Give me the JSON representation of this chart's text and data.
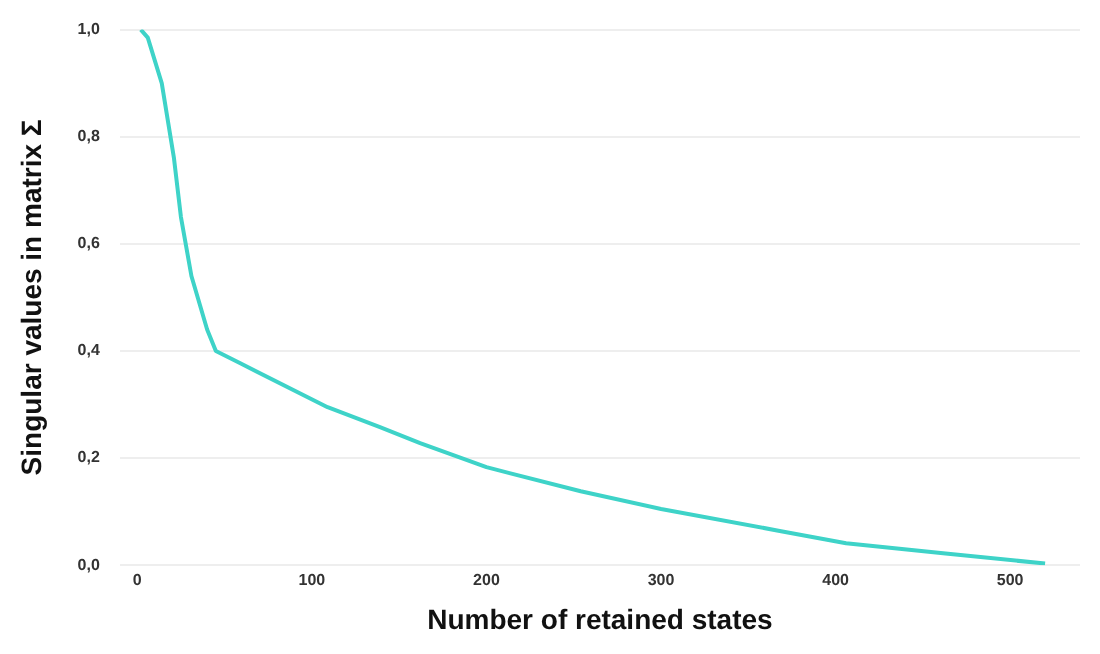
{
  "chart_data": {
    "type": "line",
    "xlabel": "Number of retained states",
    "ylabel": "Singular values in matrix Σ",
    "xlim": [
      -10,
      540
    ],
    "xticks": [
      0,
      100,
      200,
      300,
      400,
      500
    ],
    "ylim": [
      0,
      1
    ],
    "yticks": [
      {
        "value": 0,
        "label": "0,0"
      },
      {
        "value": 0.2,
        "label": "0,2"
      },
      {
        "value": 0.4,
        "label": "0,4"
      },
      {
        "value": 0.6,
        "label": "0,6"
      },
      {
        "value": 0.8,
        "label": "0,8"
      },
      {
        "value": 1,
        "label": "1,0"
      }
    ],
    "grid": "y",
    "legend": false,
    "marker": "none",
    "line_style": "solid",
    "series": [
      {
        "color": "#3ed3c8",
        "x": [
          2,
          6,
          14,
          21,
          25,
          31,
          40,
          45,
          59,
          109,
          139,
          162,
          200,
          254,
          300,
          368,
          406,
          463,
          520
        ],
        "values": [
          1.0,
          0.985,
          0.9,
          0.76,
          0.65,
          0.54,
          0.44,
          0.4,
          0.377,
          0.295,
          0.258,
          0.228,
          0.183,
          0.138,
          0.105,
          0.064,
          0.041,
          0.022,
          0.003
        ]
      }
    ]
  }
}
